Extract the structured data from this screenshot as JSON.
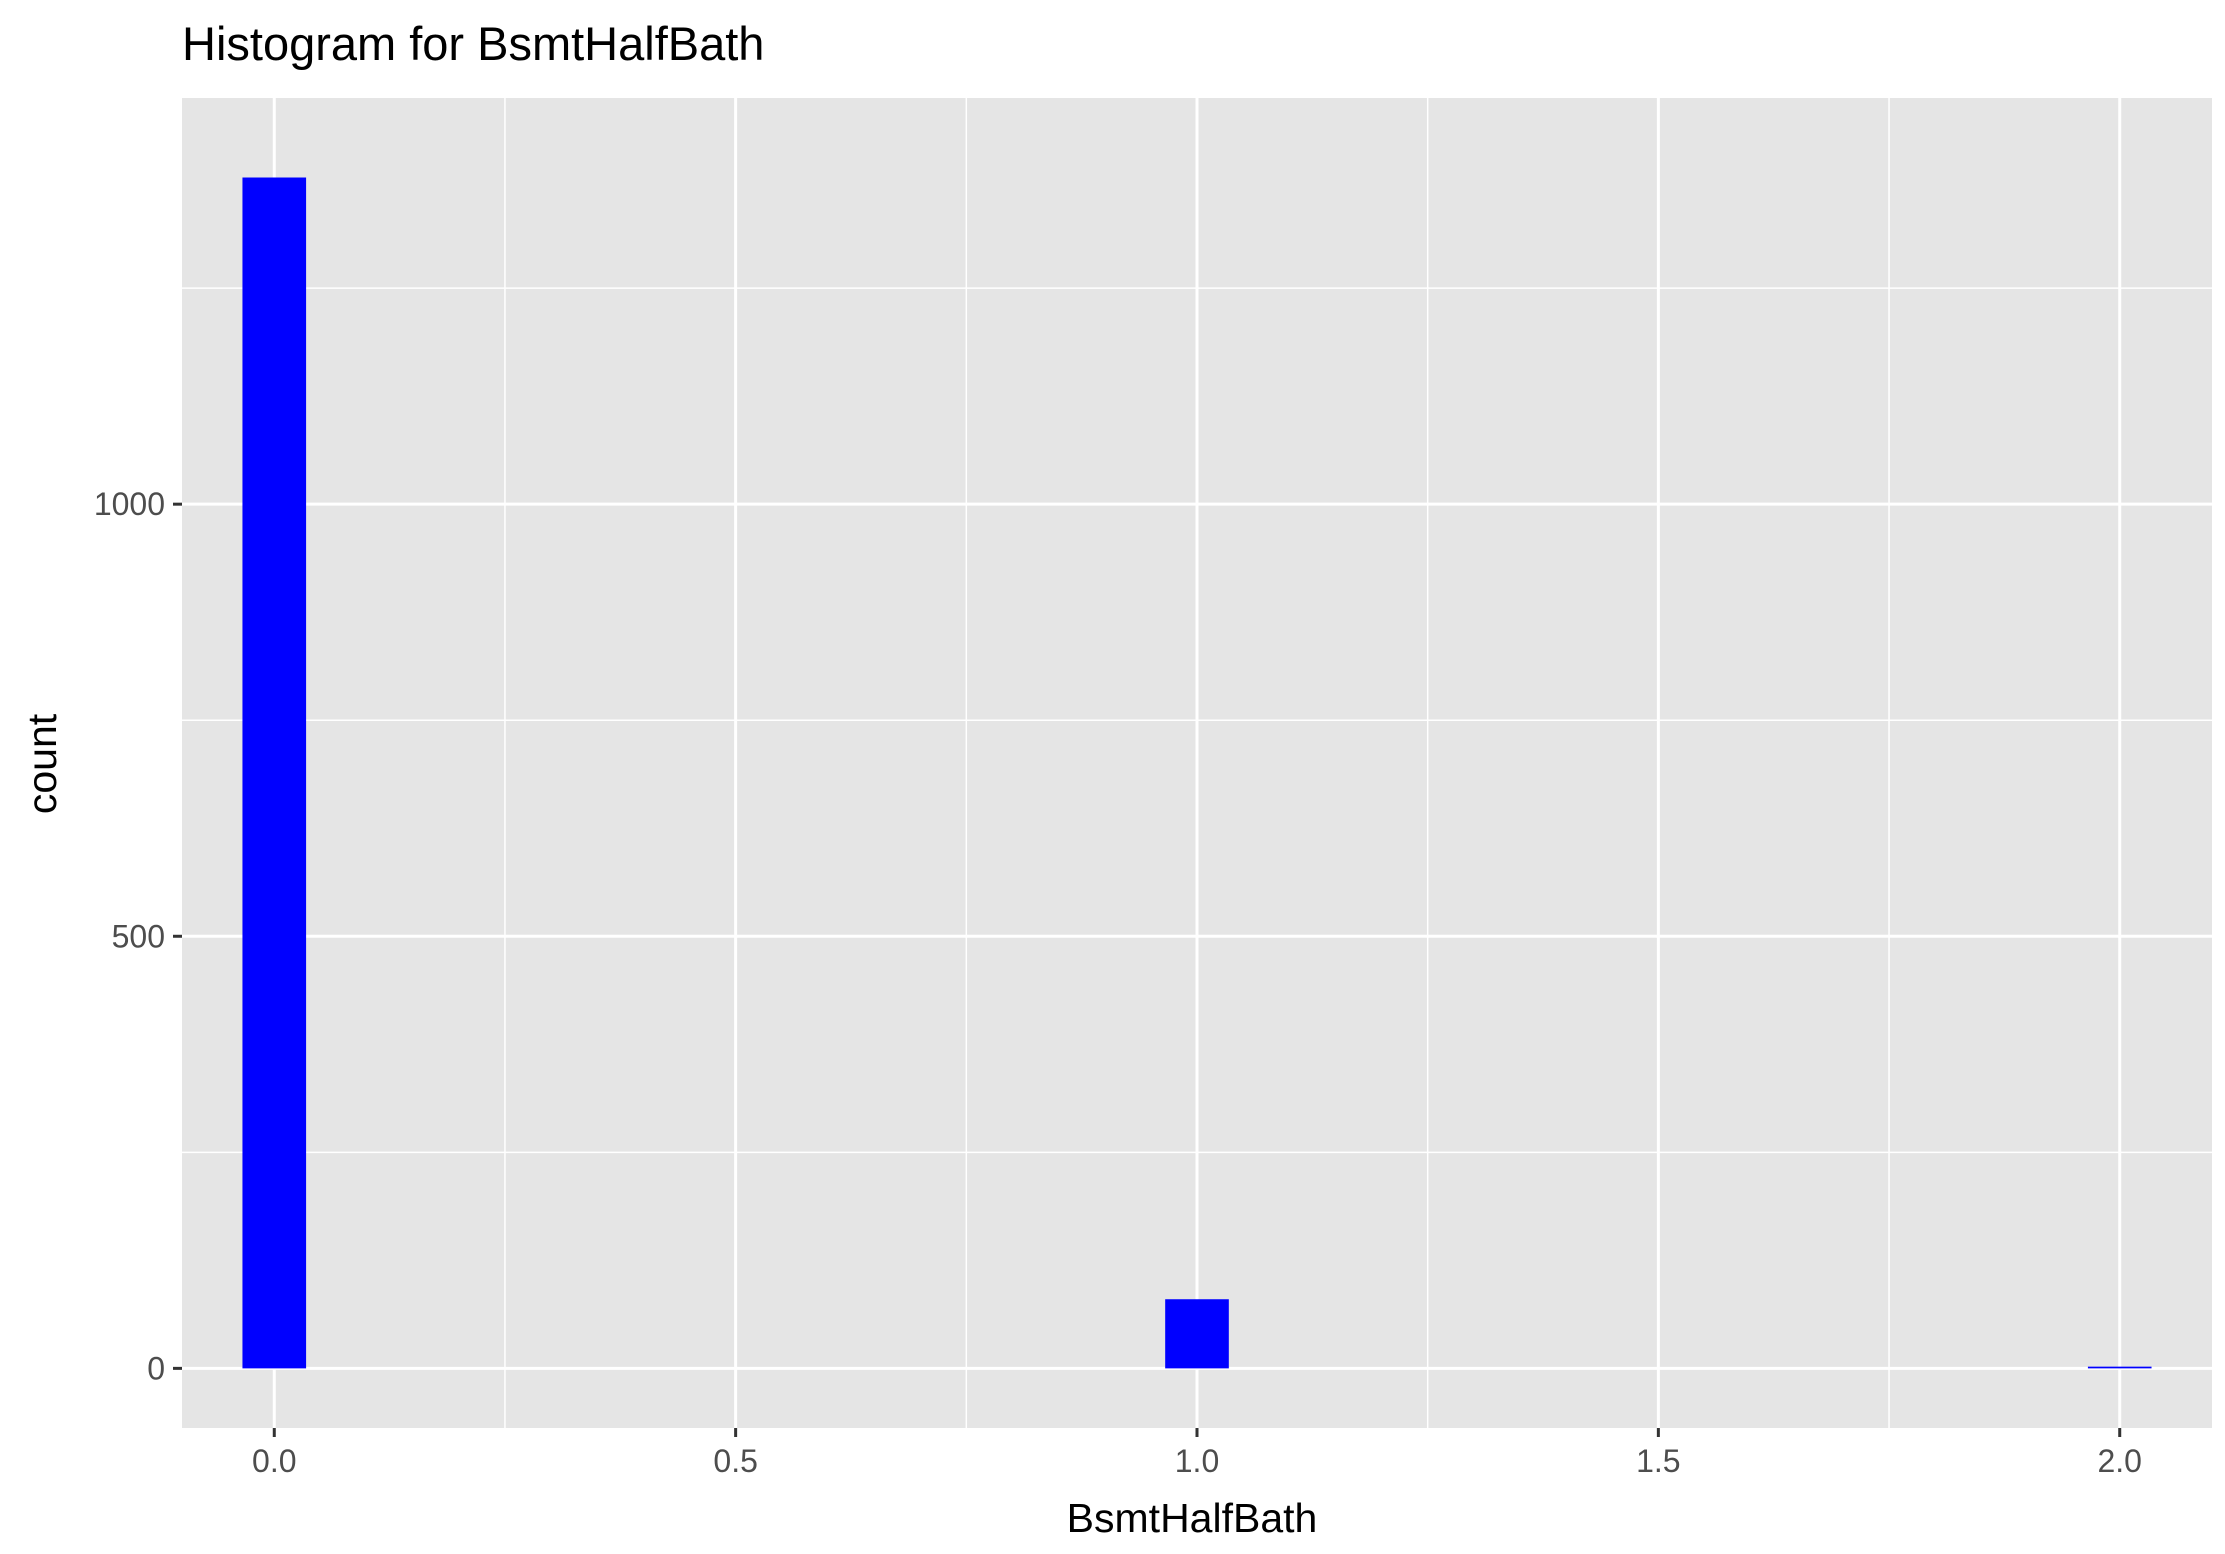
{
  "chart_data": {
    "type": "bar",
    "subtype": "histogram",
    "title": "Histogram for BsmtHalfBath",
    "xlabel": "BsmtHalfBath",
    "ylabel": "count",
    "xlim": [
      -0.1,
      2.1
    ],
    "ylim": [
      -69,
      1470
    ],
    "x_ticks": [
      0.0,
      0.5,
      1.0,
      1.5,
      2.0
    ],
    "x_tick_labels": [
      "0.0",
      "0.5",
      "1.0",
      "1.5",
      "2.0"
    ],
    "x_minor_ticks": [
      0.25,
      0.75,
      1.25,
      1.75
    ],
    "y_ticks": [
      0,
      500,
      1000
    ],
    "y_tick_labels": [
      "0",
      "500",
      "1000"
    ],
    "y_minor_ticks": [
      250,
      750,
      1250
    ],
    "bin_width": 0.0689655,
    "bins": [
      {
        "center": 0.0,
        "count": 1378
      },
      {
        "center": 1.0,
        "count": 80
      },
      {
        "center": 2.0,
        "count": 2
      }
    ],
    "grid": true,
    "colors": {
      "bar_fill": "#0000ff",
      "panel_background": "#e5e5e5",
      "grid": "#ffffff",
      "tick_text": "#4d4d4d",
      "axis_ticks": "#333333"
    }
  }
}
